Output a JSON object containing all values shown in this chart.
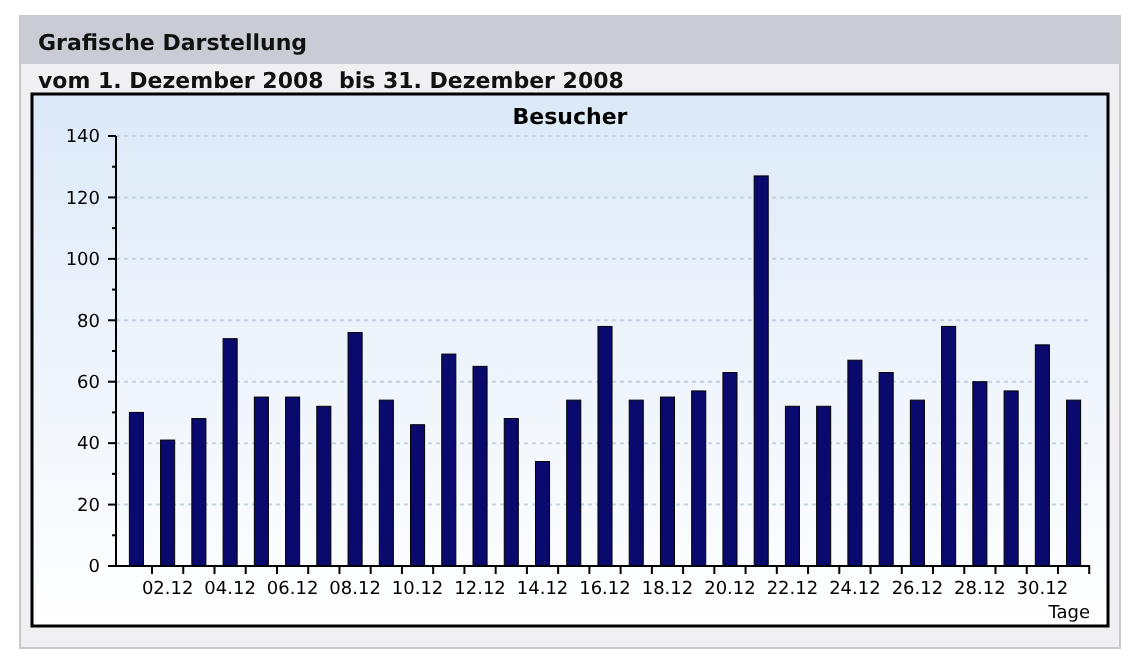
{
  "chart_data": {
    "type": "bar",
    "title": "Besucher",
    "subtitle": "vom 1. Dezember 2008  bis 31. Dezember 2008",
    "annotations": [
      "Grafische Darstellung"
    ],
    "xlabel": "Tage",
    "categories": [
      null,
      "02.12",
      null,
      "04.12",
      null,
      "06.12",
      null,
      "08.12",
      null,
      "10.12",
      null,
      "12.12",
      null,
      "14.12",
      null,
      "16.12",
      null,
      "18.12",
      null,
      "20.12",
      null,
      "22.12",
      null,
      "24.12",
      null,
      "26.12",
      null,
      "28.12",
      null,
      "30.12",
      null
    ],
    "values": [
      50,
      41,
      48,
      74,
      55,
      55,
      52,
      76,
      54,
      46,
      69,
      65,
      48,
      34,
      54,
      78,
      54,
      55,
      57,
      63,
      127,
      52,
      52,
      67,
      63,
      54,
      78,
      60,
      57,
      72,
      54
    ],
    "color": "#0a0a6e",
    "ylim": [
      0,
      140
    ],
    "yticks": [
      0,
      20,
      40,
      60,
      80,
      100,
      120,
      140
    ],
    "grid": "y"
  }
}
